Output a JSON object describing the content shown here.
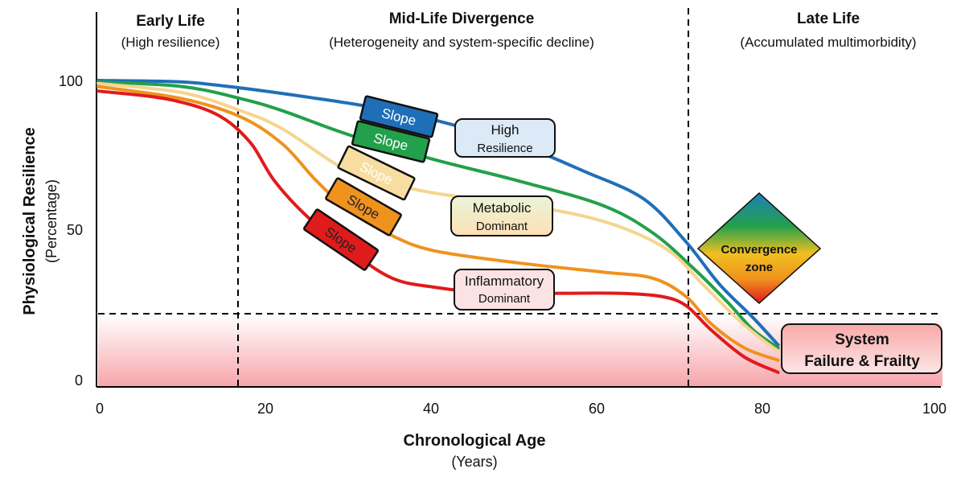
{
  "chart_data": {
    "type": "line",
    "title": "",
    "xlabel": "Chronological Age",
    "xlabel_sub": "(Years)",
    "ylabel": "Physiological Resilience",
    "ylabel_sub": "(Percentage)",
    "xlim": [
      0,
      100
    ],
    "ylim": [
      0,
      100
    ],
    "x_ticks": [
      "0",
      "20",
      "40",
      "60",
      "80",
      "100"
    ],
    "y_ticks": [
      "0",
      "50",
      "100"
    ],
    "grid": false,
    "legend": "none",
    "series": [
      {
        "name": "High Resilience",
        "color": "#1f6fb8",
        "points": [
          [
            0,
            100
          ],
          [
            10,
            99.5
          ],
          [
            17,
            97.5
          ],
          [
            25,
            94.5
          ],
          [
            32,
            91.5
          ],
          [
            40,
            87
          ],
          [
            50,
            79
          ],
          [
            58,
            70
          ],
          [
            65,
            61
          ],
          [
            70,
            47
          ],
          [
            74,
            33
          ],
          [
            78,
            22
          ],
          [
            81,
            13
          ]
        ]
      },
      {
        "name": "",
        "color": "#23a04b",
        "points": [
          [
            0,
            99.5
          ],
          [
            10,
            98
          ],
          [
            17,
            94
          ],
          [
            22,
            90
          ],
          [
            30,
            82
          ],
          [
            40,
            74
          ],
          [
            50,
            67
          ],
          [
            60,
            59
          ],
          [
            66,
            50
          ],
          [
            71,
            38
          ],
          [
            75,
            27
          ],
          [
            78,
            18
          ],
          [
            81,
            12
          ]
        ]
      },
      {
        "name": "Metabolic Dominant",
        "color": "#f5d58f",
        "points": [
          [
            0,
            99
          ],
          [
            10,
            96
          ],
          [
            17,
            90
          ],
          [
            22,
            84
          ],
          [
            30,
            70
          ],
          [
            38,
            64
          ],
          [
            45,
            61
          ],
          [
            55,
            57
          ],
          [
            62,
            52
          ],
          [
            68,
            44
          ],
          [
            72,
            33
          ],
          [
            76,
            22
          ],
          [
            79,
            15
          ],
          [
            81,
            11
          ]
        ]
      },
      {
        "name": "",
        "color": "#f0921e",
        "points": [
          [
            0,
            98
          ],
          [
            10,
            94
          ],
          [
            17,
            88
          ],
          [
            22,
            79
          ],
          [
            26,
            67
          ],
          [
            30,
            57
          ],
          [
            35,
            49
          ],
          [
            40,
            44
          ],
          [
            50,
            40
          ],
          [
            60,
            37
          ],
          [
            66,
            35
          ],
          [
            70,
            29
          ],
          [
            73,
            20
          ],
          [
            77,
            12
          ],
          [
            81,
            8
          ]
        ]
      },
      {
        "name": "Inflammatory Dominant",
        "color": "#e01b1b",
        "points": [
          [
            0,
            96.5
          ],
          [
            8,
            94
          ],
          [
            14,
            89
          ],
          [
            18,
            80
          ],
          [
            21,
            67
          ],
          [
            25,
            55
          ],
          [
            30,
            44
          ],
          [
            35,
            35
          ],
          [
            40,
            32
          ],
          [
            47,
            30
          ],
          [
            55,
            30
          ],
          [
            62,
            30
          ],
          [
            67,
            29
          ],
          [
            70,
            26
          ],
          [
            73,
            18
          ],
          [
            77,
            9
          ],
          [
            81,
            4
          ]
        ]
      }
    ],
    "threshold": {
      "y": 23,
      "style": "dashed"
    },
    "phase_boundaries": [
      17,
      71
    ]
  },
  "phases": [
    {
      "title": "Early Life",
      "subtitle": "(High resilience)"
    },
    {
      "title": "Mid-Life Divergence",
      "subtitle": "(Heterogeneity and system-specific decline)"
    },
    {
      "title": "Late Life",
      "subtitle": "(Accumulated multimorbidity)"
    }
  ],
  "slope_tags": [
    {
      "label": "Slope",
      "color": "#1f6fb8",
      "text_color": "#ffffff"
    },
    {
      "label": "Slope",
      "color": "#23a04b",
      "text_color": "#ffffff"
    },
    {
      "label": "Slope",
      "color": "#f7dea0",
      "text_color": "#ffffff"
    },
    {
      "label": "Slope",
      "color": "#f0921e",
      "text_color": "#222222"
    },
    {
      "label": "Slope",
      "color": "#e01b1b",
      "text_color": "#222222"
    }
  ],
  "boxes": {
    "high": {
      "line1": "High",
      "line2": "Resilience",
      "fill": "#dce9f6"
    },
    "metabolic": {
      "line1": "Metabolic",
      "line2": "Dominant",
      "fill_top": "#eaf4d9",
      "fill_bottom": "#fde1b9"
    },
    "inflammatory": {
      "line1": "Inflammatory",
      "line2": "Dominant",
      "fill": "#fce3e3"
    },
    "convergence": {
      "line1": "Convergence",
      "line2": "zone",
      "colors": [
        "#1f7fb8",
        "#23a04b",
        "#f0c020",
        "#f0921e",
        "#e01b1b"
      ]
    },
    "failure": {
      "line1": "System",
      "line2": "Failure & Frailty",
      "fill_top": "#f9b3b3",
      "fill_bottom": "#fde8e8"
    }
  }
}
